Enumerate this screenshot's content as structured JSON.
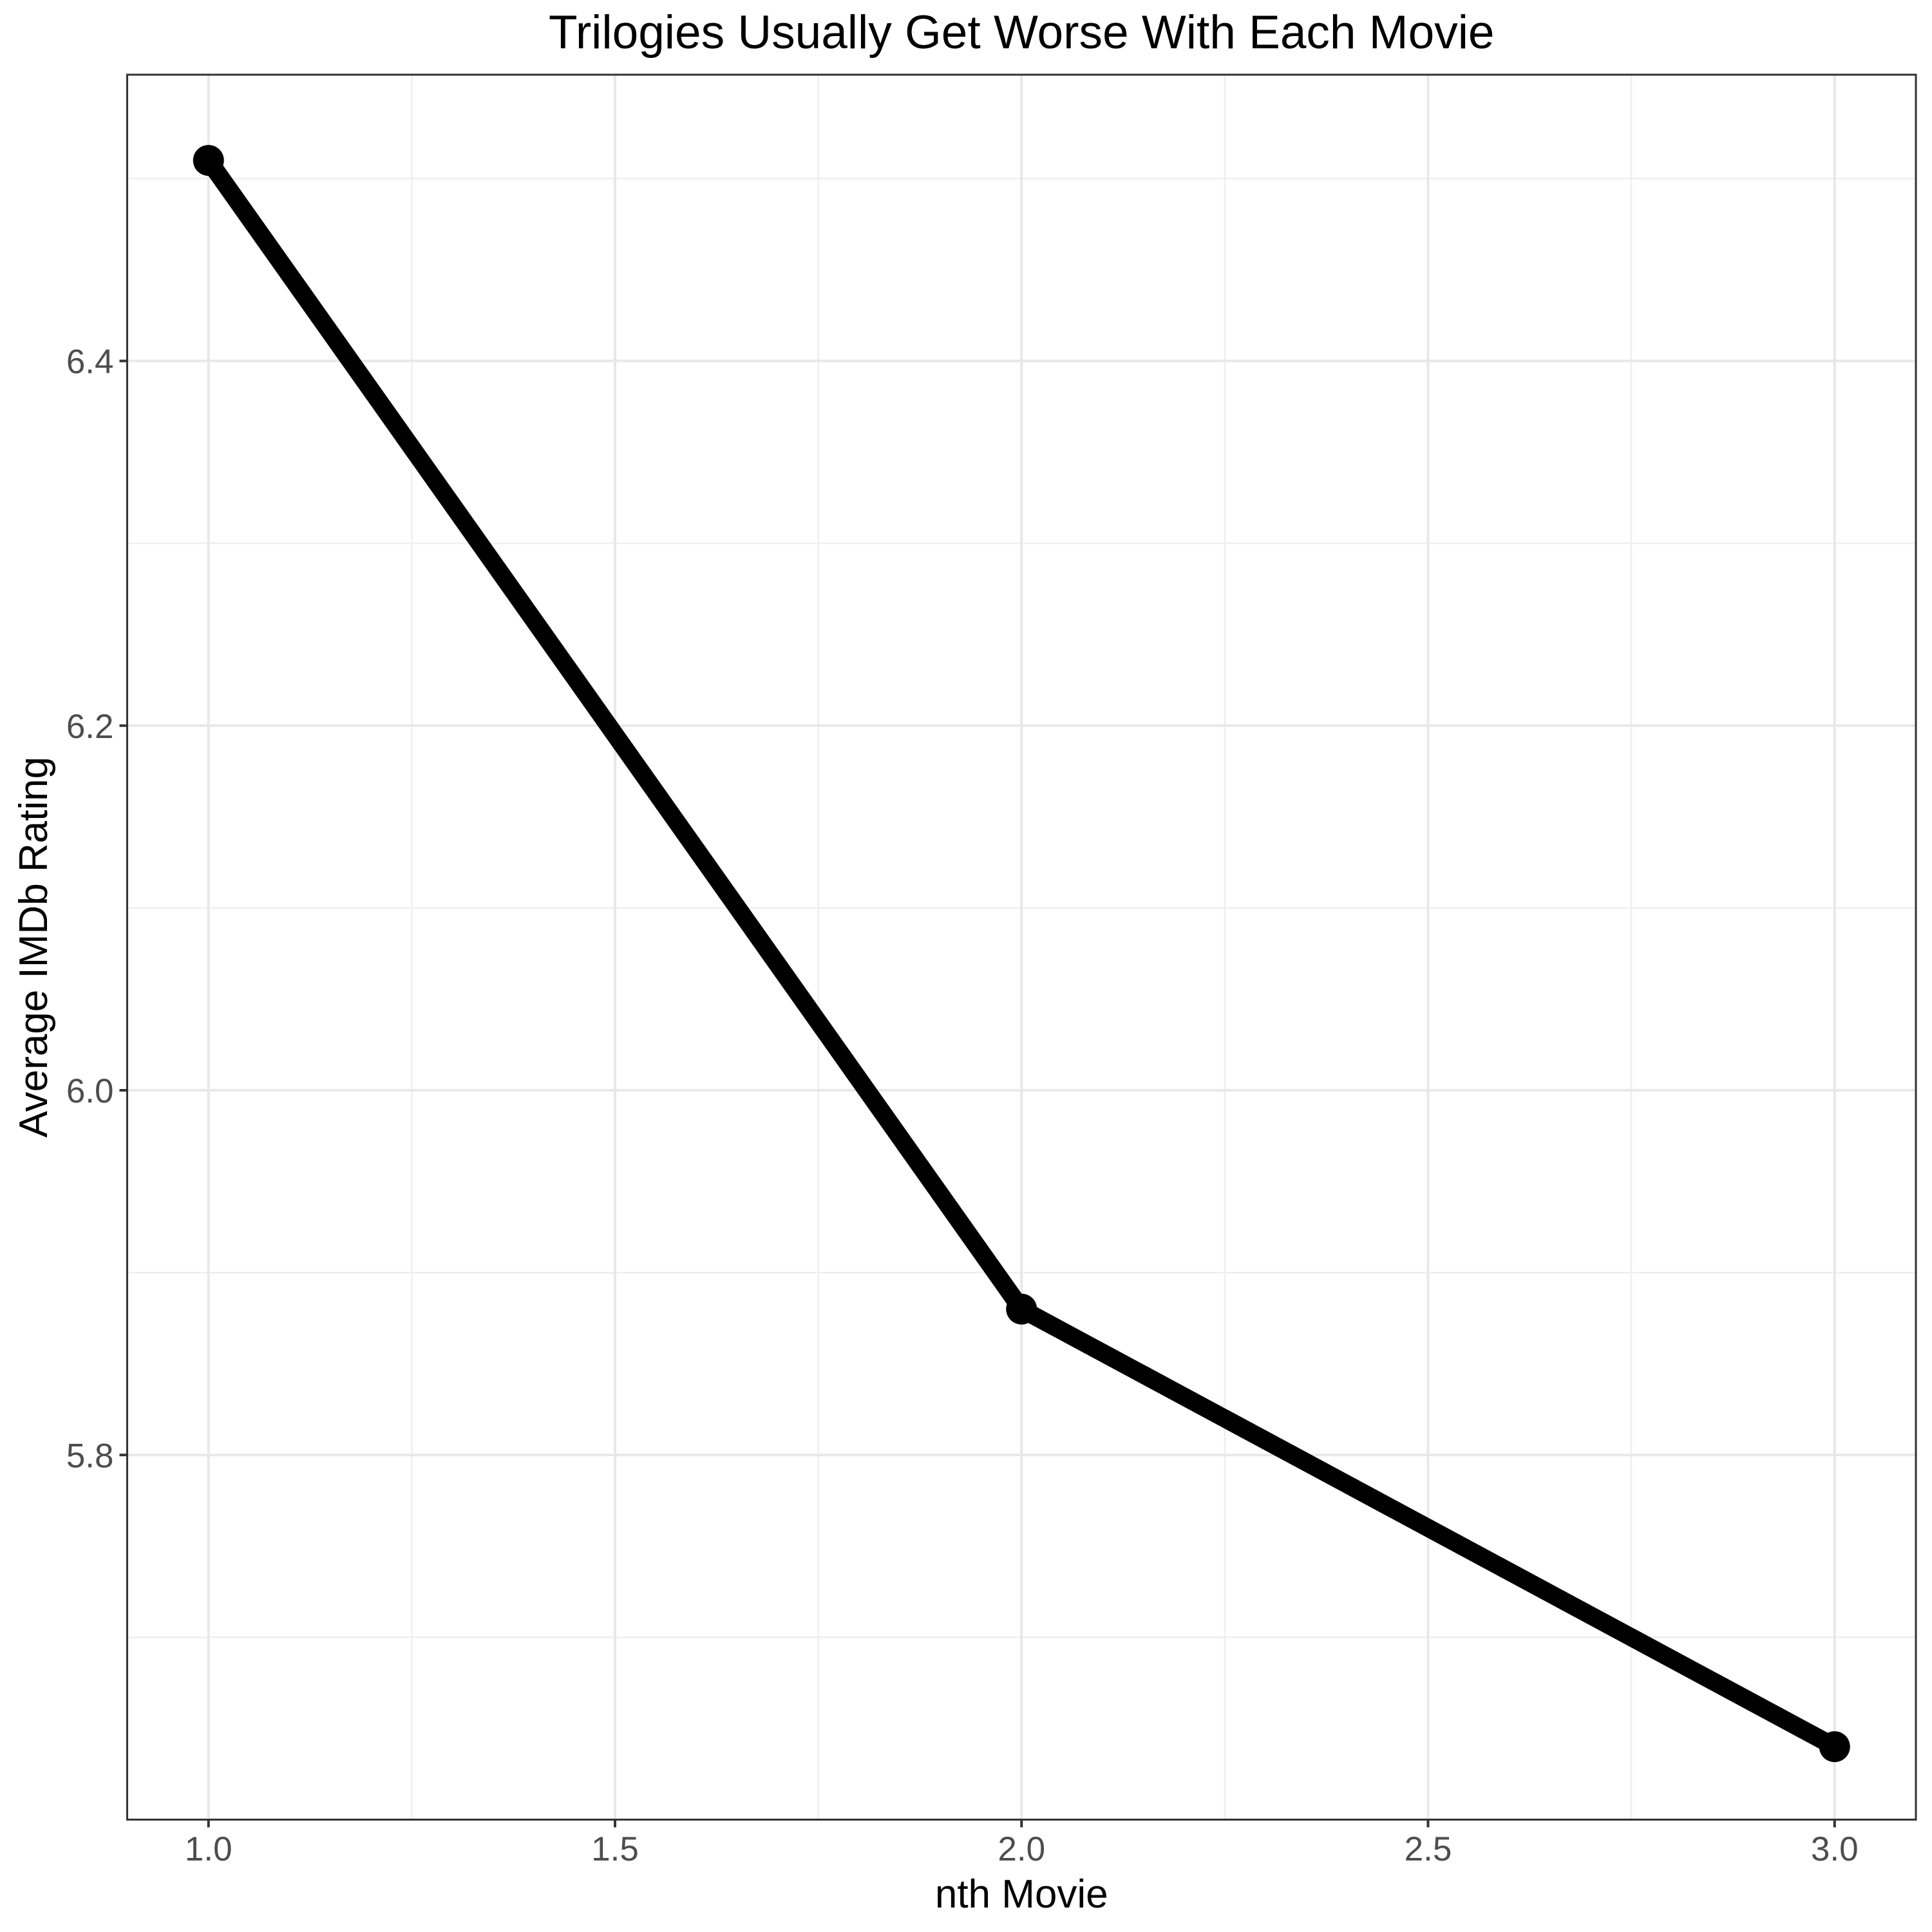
{
  "chart_data": {
    "type": "line",
    "title": "Trilogies Usually Get Worse With Each Movie",
    "xlabel": "nth Movie",
    "ylabel": "Average IMDb Rating",
    "x": [
      1,
      2,
      3
    ],
    "y": [
      6.51,
      5.88,
      5.64
    ],
    "points": [
      {
        "x": 1,
        "y": 6.51
      },
      {
        "x": 2,
        "y": 5.88
      },
      {
        "x": 3,
        "y": 5.64
      }
    ],
    "xlim": [
      0.9,
      3.1
    ],
    "ylim": [
      5.6,
      6.557
    ],
    "x_ticks": [
      {
        "value": 1.0,
        "label": "1.0"
      },
      {
        "value": 1.5,
        "label": "1.5"
      },
      {
        "value": 2.0,
        "label": "2.0"
      },
      {
        "value": 2.5,
        "label": "2.5"
      },
      {
        "value": 3.0,
        "label": "3.0"
      }
    ],
    "y_ticks": [
      {
        "value": 5.8,
        "label": "5.8"
      },
      {
        "value": 6.0,
        "label": "6.0"
      },
      {
        "value": 6.2,
        "label": "6.2"
      },
      {
        "value": 6.4,
        "label": "6.4"
      }
    ],
    "grid": "major+minor",
    "legend": "none",
    "colors": {
      "line": "#000000",
      "point": "#000000",
      "major_grid": "#e8e8e8",
      "minor_grid": "#efefef",
      "panel_border": "#333333",
      "tick_mark": "#333333",
      "tick_label": "#4d4d4d",
      "axis_title": "#000000",
      "title": "#000000",
      "background": "#ffffff"
    }
  }
}
